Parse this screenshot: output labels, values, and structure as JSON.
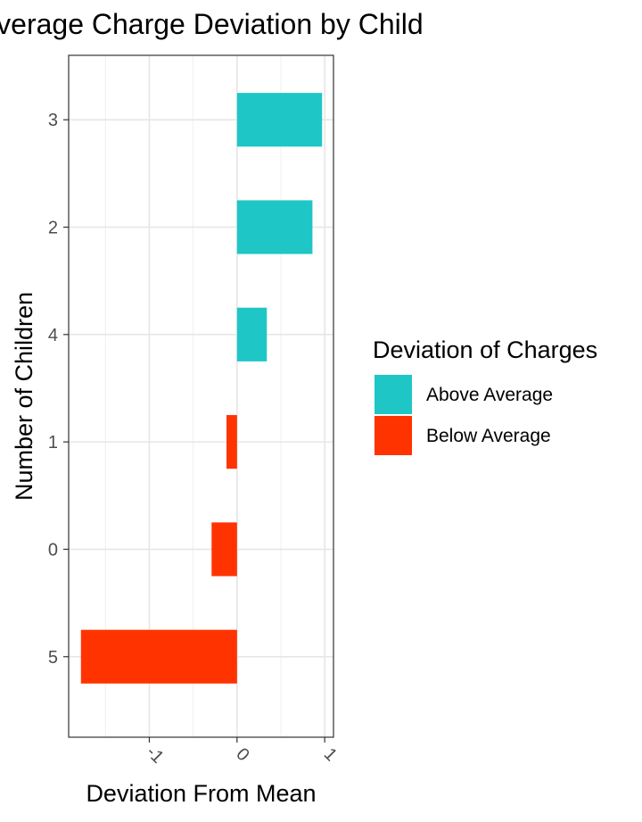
{
  "chart_data": {
    "type": "bar",
    "orientation": "horizontal",
    "title": "Average Charge Deviation by Child",
    "xlabel": "Deviation From Mean",
    "ylabel": "Number of Children",
    "categories": [
      "3",
      "2",
      "4",
      "1",
      "0",
      "5"
    ],
    "values": [
      0.97,
      0.86,
      0.34,
      -0.12,
      -0.29,
      -1.78
    ],
    "xlim": [
      -1.92,
      1.1
    ],
    "x_ticks": [
      -1,
      0,
      1
    ],
    "x_tick_labels": [
      "-1",
      "0",
      "1"
    ],
    "grid": true,
    "legend": {
      "title": "Deviation of Charges",
      "position": "right",
      "entries": [
        {
          "label": "Above Average",
          "color": "#1ec6c6"
        },
        {
          "label": "Below Average",
          "color": "#ff3300"
        }
      ]
    },
    "colors": {
      "above": "#1ec6c6",
      "below": "#ff3300"
    }
  }
}
